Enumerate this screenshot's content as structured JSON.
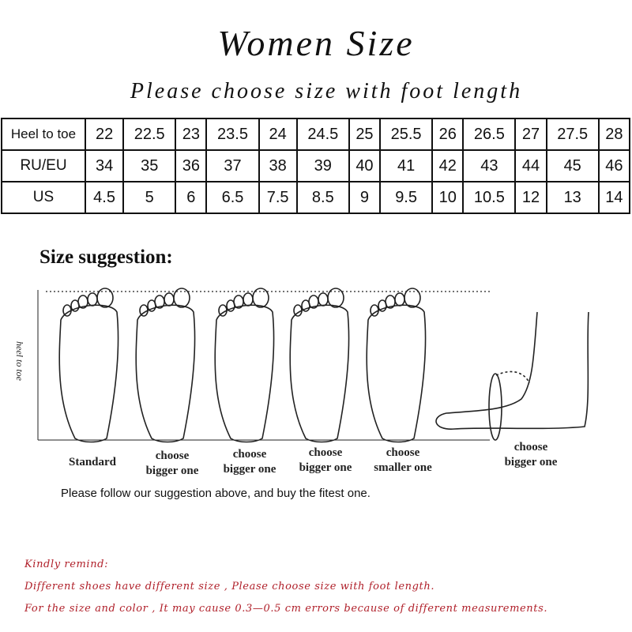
{
  "title": "Women Size",
  "subtitle": "Please choose size with foot length",
  "table": {
    "rows": [
      {
        "label": "Heel to toe",
        "values": [
          "22",
          "22.5",
          "23",
          "23.5",
          "24",
          "24.5",
          "25",
          "25.5",
          "26",
          "26.5",
          "27",
          "27.5",
          "28"
        ]
      },
      {
        "label": "RU/EU",
        "values": [
          "34",
          "35",
          "36",
          "37",
          "38",
          "39",
          "40",
          "41",
          "42",
          "43",
          "44",
          "45",
          "46"
        ]
      },
      {
        "label": "US",
        "values": [
          "4.5",
          "5",
          "6",
          "6.5",
          "7.5",
          "8.5",
          "9",
          "9.5",
          "10",
          "10.5",
          "12",
          "13",
          "14"
        ]
      }
    ]
  },
  "suggestion": {
    "heading": "Size suggestion:",
    "axis_label": "heel to toe",
    "labels": [
      "Standard",
      "choose\nbigger one",
      "choose\nbigger one",
      "choose\nbigger one",
      "choose\nsmaller one",
      "choose\nbigger one"
    ],
    "follow_text": "Please follow our suggestion above, and buy the fitest one."
  },
  "remind": {
    "heading": "Kindly remind:",
    "line1": "Different shoes have different size , Please choose size with foot length.",
    "line2": "For the size and color , It may cause 0.3—0.5 cm errors because of different measurements."
  },
  "colors": {
    "remind": "#b0202a",
    "text": "#111111"
  }
}
